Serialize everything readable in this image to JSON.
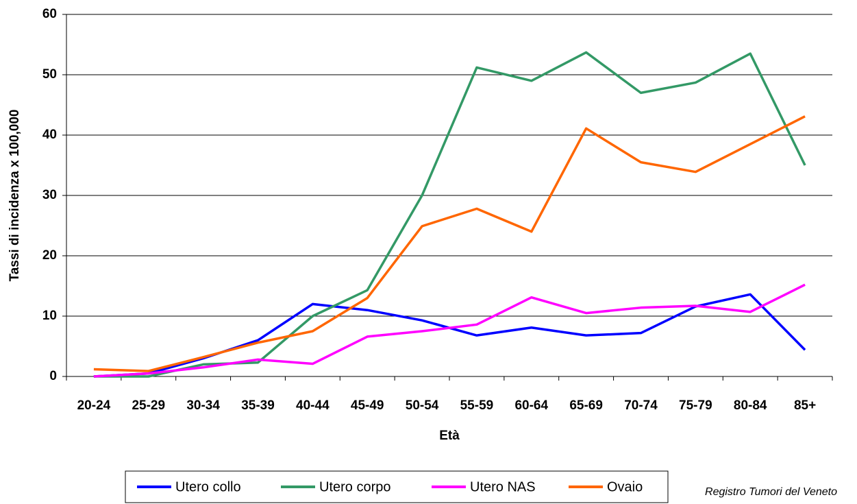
{
  "chart_data": {
    "type": "line",
    "x_label": "Età",
    "y_label": "Tassi di incidenza x 100,000",
    "annotation": "Registro Tumori del Veneto",
    "categories": [
      "20-24",
      "25-29",
      "30-34",
      "35-39",
      "40-44",
      "45-49",
      "50-54",
      "55-59",
      "60-64",
      "65-69",
      "70-74",
      "75-79",
      "80-84",
      "85+"
    ],
    "series": [
      {
        "name": "Utero collo",
        "color": "#0000ff",
        "values": [
          0,
          0.5,
          3,
          6,
          12,
          11,
          9.3,
          6.8,
          8.1,
          6.8,
          7.2,
          11.6,
          13.6,
          4.4
        ]
      },
      {
        "name": "Utero corpo",
        "color": "#339966",
        "values": [
          0,
          0,
          2,
          2.3,
          10,
          14.3,
          30,
          51.2,
          49,
          53.7,
          47,
          48.7,
          53.5,
          35
        ]
      },
      {
        "name": "Utero NAS",
        "color": "#ff00ff",
        "values": [
          0,
          0.5,
          1.5,
          2.8,
          2.1,
          6.6,
          7.5,
          8.6,
          13.1,
          10.5,
          11.4,
          11.7,
          10.7,
          15.2
        ]
      },
      {
        "name": "Ovaio",
        "color": "#ff6600",
        "values": [
          1.2,
          0.9,
          3.2,
          5.6,
          7.5,
          13,
          24.9,
          27.8,
          24,
          41.1,
          35.5,
          33.9,
          38.5,
          43.1
        ]
      }
    ],
    "ylim": [
      0,
      60
    ],
    "yticks": [
      0,
      10,
      20,
      30,
      40,
      50,
      60
    ],
    "grid": true,
    "legend": "bottom"
  }
}
